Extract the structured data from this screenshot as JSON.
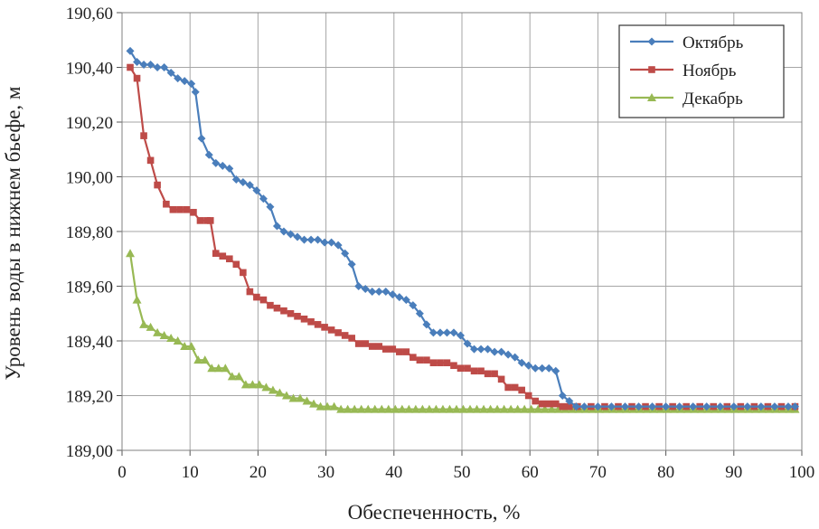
{
  "chart_data": {
    "type": "line",
    "xlabel": "Обеспеченность, %",
    "ylabel": "Уровень воды в нижнем бьефе, м",
    "xlim": [
      0,
      100
    ],
    "ylim": [
      189.0,
      190.6
    ],
    "x_ticks": [
      "0",
      "10",
      "20",
      "30",
      "40",
      "50",
      "60",
      "70",
      "80",
      "90",
      "100"
    ],
    "y_ticks": [
      "189,00",
      "189,20",
      "189,40",
      "189,60",
      "189,80",
      "190,00",
      "190,20",
      "190,40",
      "190,60"
    ],
    "grid": true,
    "legend_position": "top-right",
    "series": [
      {
        "name": "Октябрь",
        "color": "#4a7ebb",
        "marker": "diamond",
        "points": [
          [
            1.2,
            190.46
          ],
          [
            2.2,
            190.42
          ],
          [
            3.2,
            190.41
          ],
          [
            4.2,
            190.41
          ],
          [
            5.2,
            190.4
          ],
          [
            6.2,
            190.4
          ],
          [
            7.2,
            190.38
          ],
          [
            8.2,
            190.36
          ],
          [
            9.2,
            190.35
          ],
          [
            10.2,
            190.34
          ],
          [
            10.8,
            190.31
          ],
          [
            11.7,
            190.14
          ],
          [
            12.8,
            190.08
          ],
          [
            13.8,
            190.05
          ],
          [
            14.8,
            190.04
          ],
          [
            15.8,
            190.03
          ],
          [
            16.8,
            189.99
          ],
          [
            17.8,
            189.98
          ],
          [
            18.8,
            189.97
          ],
          [
            19.8,
            189.95
          ],
          [
            20.8,
            189.92
          ],
          [
            21.8,
            189.89
          ],
          [
            22.8,
            189.82
          ],
          [
            23.8,
            189.8
          ],
          [
            24.8,
            189.79
          ],
          [
            25.8,
            189.78
          ],
          [
            26.8,
            189.77
          ],
          [
            27.8,
            189.77
          ],
          [
            28.8,
            189.77
          ],
          [
            29.8,
            189.76
          ],
          [
            30.8,
            189.76
          ],
          [
            31.8,
            189.75
          ],
          [
            32.8,
            189.72
          ],
          [
            33.8,
            189.68
          ],
          [
            34.8,
            189.6
          ],
          [
            35.8,
            189.59
          ],
          [
            36.8,
            189.58
          ],
          [
            37.8,
            189.58
          ],
          [
            38.8,
            189.58
          ],
          [
            39.8,
            189.57
          ],
          [
            40.8,
            189.56
          ],
          [
            41.8,
            189.55
          ],
          [
            42.8,
            189.53
          ],
          [
            43.8,
            189.5
          ],
          [
            44.8,
            189.46
          ],
          [
            45.8,
            189.43
          ],
          [
            46.8,
            189.43
          ],
          [
            47.8,
            189.43
          ],
          [
            48.8,
            189.43
          ],
          [
            49.8,
            189.42
          ],
          [
            50.8,
            189.39
          ],
          [
            51.8,
            189.37
          ],
          [
            52.8,
            189.37
          ],
          [
            53.8,
            189.37
          ],
          [
            54.8,
            189.36
          ],
          [
            55.8,
            189.36
          ],
          [
            56.8,
            189.35
          ],
          [
            57.8,
            189.34
          ],
          [
            58.8,
            189.32
          ],
          [
            59.8,
            189.31
          ],
          [
            60.8,
            189.3
          ],
          [
            61.8,
            189.3
          ],
          [
            62.8,
            189.3
          ],
          [
            63.8,
            189.29
          ],
          [
            64.8,
            189.2
          ],
          [
            65.8,
            189.18
          ],
          [
            66.8,
            189.16
          ],
          [
            68,
            189.16
          ],
          [
            70,
            189.16
          ],
          [
            72,
            189.16
          ],
          [
            74,
            189.16
          ],
          [
            76,
            189.16
          ],
          [
            78,
            189.16
          ],
          [
            80,
            189.16
          ],
          [
            82,
            189.16
          ],
          [
            84,
            189.16
          ],
          [
            86,
            189.16
          ],
          [
            88,
            189.16
          ],
          [
            90,
            189.16
          ],
          [
            92,
            189.16
          ],
          [
            94,
            189.16
          ],
          [
            96,
            189.16
          ],
          [
            98,
            189.16
          ],
          [
            99,
            189.16
          ]
        ]
      },
      {
        "name": "Ноябрь",
        "color": "#be4b48",
        "marker": "square",
        "points": [
          [
            1.2,
            190.4
          ],
          [
            2.2,
            190.36
          ],
          [
            3.2,
            190.15
          ],
          [
            4.2,
            190.06
          ],
          [
            5.2,
            189.97
          ],
          [
            6.5,
            189.9
          ],
          [
            7.5,
            189.88
          ],
          [
            8.5,
            189.88
          ],
          [
            9.5,
            189.88
          ],
          [
            10.5,
            189.87
          ],
          [
            11.5,
            189.84
          ],
          [
            12.5,
            189.84
          ],
          [
            13.0,
            189.84
          ],
          [
            13.8,
            189.72
          ],
          [
            14.8,
            189.71
          ],
          [
            15.8,
            189.7
          ],
          [
            16.8,
            189.68
          ],
          [
            17.8,
            189.65
          ],
          [
            18.8,
            189.58
          ],
          [
            19.8,
            189.56
          ],
          [
            20.8,
            189.55
          ],
          [
            21.8,
            189.53
          ],
          [
            22.8,
            189.52
          ],
          [
            23.8,
            189.51
          ],
          [
            24.8,
            189.5
          ],
          [
            25.8,
            189.49
          ],
          [
            26.8,
            189.48
          ],
          [
            27.8,
            189.47
          ],
          [
            28.8,
            189.46
          ],
          [
            29.8,
            189.45
          ],
          [
            30.8,
            189.44
          ],
          [
            31.8,
            189.43
          ],
          [
            32.8,
            189.42
          ],
          [
            33.8,
            189.41
          ],
          [
            34.8,
            189.39
          ],
          [
            35.8,
            189.39
          ],
          [
            36.8,
            189.38
          ],
          [
            37.8,
            189.38
          ],
          [
            38.8,
            189.37
          ],
          [
            39.8,
            189.37
          ],
          [
            40.8,
            189.36
          ],
          [
            41.8,
            189.36
          ],
          [
            42.8,
            189.34
          ],
          [
            43.8,
            189.33
          ],
          [
            44.8,
            189.33
          ],
          [
            45.8,
            189.32
          ],
          [
            46.8,
            189.32
          ],
          [
            47.8,
            189.32
          ],
          [
            48.8,
            189.31
          ],
          [
            49.8,
            189.3
          ],
          [
            50.8,
            189.3
          ],
          [
            51.8,
            189.29
          ],
          [
            52.8,
            189.29
          ],
          [
            53.8,
            189.28
          ],
          [
            54.8,
            189.28
          ],
          [
            55.8,
            189.26
          ],
          [
            56.8,
            189.23
          ],
          [
            57.8,
            189.23
          ],
          [
            58.8,
            189.22
          ],
          [
            59.8,
            189.2
          ],
          [
            60.8,
            189.18
          ],
          [
            61.8,
            189.17
          ],
          [
            62.8,
            189.17
          ],
          [
            63.8,
            189.17
          ],
          [
            64.8,
            189.16
          ],
          [
            65.8,
            189.16
          ],
          [
            67,
            189.16
          ],
          [
            69,
            189.16
          ],
          [
            71,
            189.16
          ],
          [
            73,
            189.16
          ],
          [
            75,
            189.16
          ],
          [
            77,
            189.16
          ],
          [
            79,
            189.16
          ],
          [
            81,
            189.16
          ],
          [
            83,
            189.16
          ],
          [
            85,
            189.16
          ],
          [
            87,
            189.16
          ],
          [
            89,
            189.16
          ],
          [
            91,
            189.16
          ],
          [
            93,
            189.16
          ],
          [
            95,
            189.16
          ],
          [
            97,
            189.16
          ],
          [
            99,
            189.16
          ]
        ]
      },
      {
        "name": "Декабрь",
        "color": "#98b954",
        "marker": "triangle",
        "points": [
          [
            1.2,
            189.72
          ],
          [
            2.2,
            189.55
          ],
          [
            3.2,
            189.46
          ],
          [
            4.2,
            189.45
          ],
          [
            5.2,
            189.43
          ],
          [
            6.2,
            189.42
          ],
          [
            7.2,
            189.41
          ],
          [
            8.2,
            189.4
          ],
          [
            9.2,
            189.38
          ],
          [
            10.2,
            189.38
          ],
          [
            11.2,
            189.33
          ],
          [
            12.2,
            189.33
          ],
          [
            13.2,
            189.3
          ],
          [
            14.2,
            189.3
          ],
          [
            15.2,
            189.3
          ],
          [
            16.2,
            189.27
          ],
          [
            17.2,
            189.27
          ],
          [
            18.2,
            189.24
          ],
          [
            19.2,
            189.24
          ],
          [
            20.2,
            189.24
          ],
          [
            21.2,
            189.23
          ],
          [
            22.2,
            189.22
          ],
          [
            23.2,
            189.21
          ],
          [
            24.2,
            189.2
          ],
          [
            25.2,
            189.19
          ],
          [
            26.2,
            189.19
          ],
          [
            27.2,
            189.18
          ],
          [
            28.2,
            189.17
          ],
          [
            29.2,
            189.16
          ],
          [
            30.2,
            189.16
          ],
          [
            31.2,
            189.16
          ],
          [
            32.2,
            189.15
          ],
          [
            33.2,
            189.15
          ],
          [
            34.2,
            189.15
          ],
          [
            35.2,
            189.15
          ],
          [
            36.2,
            189.15
          ],
          [
            37.2,
            189.15
          ],
          [
            38.2,
            189.15
          ],
          [
            39.2,
            189.15
          ],
          [
            40.2,
            189.15
          ],
          [
            41.2,
            189.15
          ],
          [
            42.2,
            189.15
          ],
          [
            43.2,
            189.15
          ],
          [
            44.2,
            189.15
          ],
          [
            45.2,
            189.15
          ],
          [
            46.2,
            189.15
          ],
          [
            47.2,
            189.15
          ],
          [
            48.2,
            189.15
          ],
          [
            49.2,
            189.15
          ],
          [
            50.2,
            189.15
          ],
          [
            51.2,
            189.15
          ],
          [
            52.2,
            189.15
          ],
          [
            53.2,
            189.15
          ],
          [
            54.2,
            189.15
          ],
          [
            55.2,
            189.15
          ],
          [
            56.2,
            189.15
          ],
          [
            57.2,
            189.15
          ],
          [
            58.2,
            189.15
          ],
          [
            59.2,
            189.15
          ],
          [
            60.2,
            189.15
          ],
          [
            61.2,
            189.15
          ],
          [
            62.2,
            189.15
          ],
          [
            63.2,
            189.15
          ],
          [
            64.2,
            189.15
          ],
          [
            65.2,
            189.15
          ],
          [
            66.2,
            189.15
          ],
          [
            67.2,
            189.15
          ],
          [
            68.2,
            189.15
          ],
          [
            69.2,
            189.15
          ],
          [
            70.2,
            189.15
          ],
          [
            71.2,
            189.15
          ],
          [
            72.2,
            189.15
          ],
          [
            73.2,
            189.15
          ],
          [
            74.2,
            189.15
          ],
          [
            75.2,
            189.15
          ],
          [
            76.2,
            189.15
          ],
          [
            77.2,
            189.15
          ],
          [
            78.2,
            189.15
          ],
          [
            79.2,
            189.15
          ],
          [
            80.2,
            189.15
          ],
          [
            81.2,
            189.15
          ],
          [
            82.2,
            189.15
          ],
          [
            83.2,
            189.15
          ],
          [
            84.2,
            189.15
          ],
          [
            85.2,
            189.15
          ],
          [
            86.2,
            189.15
          ],
          [
            87.2,
            189.15
          ],
          [
            88.2,
            189.15
          ],
          [
            89.2,
            189.15
          ],
          [
            90.2,
            189.15
          ],
          [
            91.2,
            189.15
          ],
          [
            92.2,
            189.15
          ],
          [
            93.2,
            189.15
          ],
          [
            94.2,
            189.15
          ],
          [
            95.2,
            189.15
          ],
          [
            96.2,
            189.15
          ],
          [
            97.2,
            189.15
          ],
          [
            98.2,
            189.15
          ],
          [
            99,
            189.15
          ]
        ]
      }
    ]
  }
}
